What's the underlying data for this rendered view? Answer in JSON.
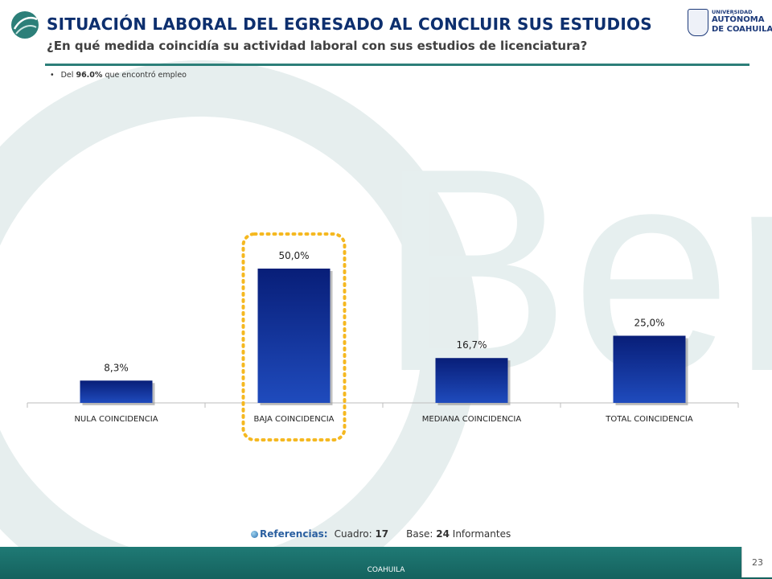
{
  "header": {
    "title": "SITUACIÓN LABORAL DEL EGRESADO AL CONCLUIR SUS ESTUDIOS",
    "subtitle": "¿En qué medida coincidía su actividad laboral con sus estudios de licenciatura?"
  },
  "note": {
    "prefix": "Del",
    "percent": "96.0%",
    "suffix": "que encontró empleo"
  },
  "university_logo": {
    "line1": "UNIVERSIDAD",
    "line2": "AUTÓNOMA",
    "line3": "DE COAHUILA"
  },
  "watermark_text": "Ber",
  "chart_data": {
    "type": "bar",
    "categories": [
      "NULA COINCIDENCIA",
      "BAJA COINCIDENCIA",
      "MEDIANA COINCIDENCIA",
      "TOTAL COINCIDENCIA"
    ],
    "values": [
      8.3,
      50.0,
      16.7,
      25.0
    ],
    "data_labels": [
      "8,3%",
      "50,0%",
      "16,7%",
      "25,0%"
    ],
    "ylim": [
      0,
      100
    ],
    "grid": false,
    "highlighted_category": "BAJA COINCIDENCIA",
    "bar_color": "#0e2a8a",
    "highlight_color": "#f5b820"
  },
  "references": {
    "label": "Referencias:",
    "cuadro_label": "Cuadro:",
    "cuadro_value": "17",
    "base_label": "Base:",
    "base_value": "24",
    "base_suffix": "Informantes"
  },
  "footer": {
    "text": "COAHUILA",
    "page_number": "23"
  }
}
